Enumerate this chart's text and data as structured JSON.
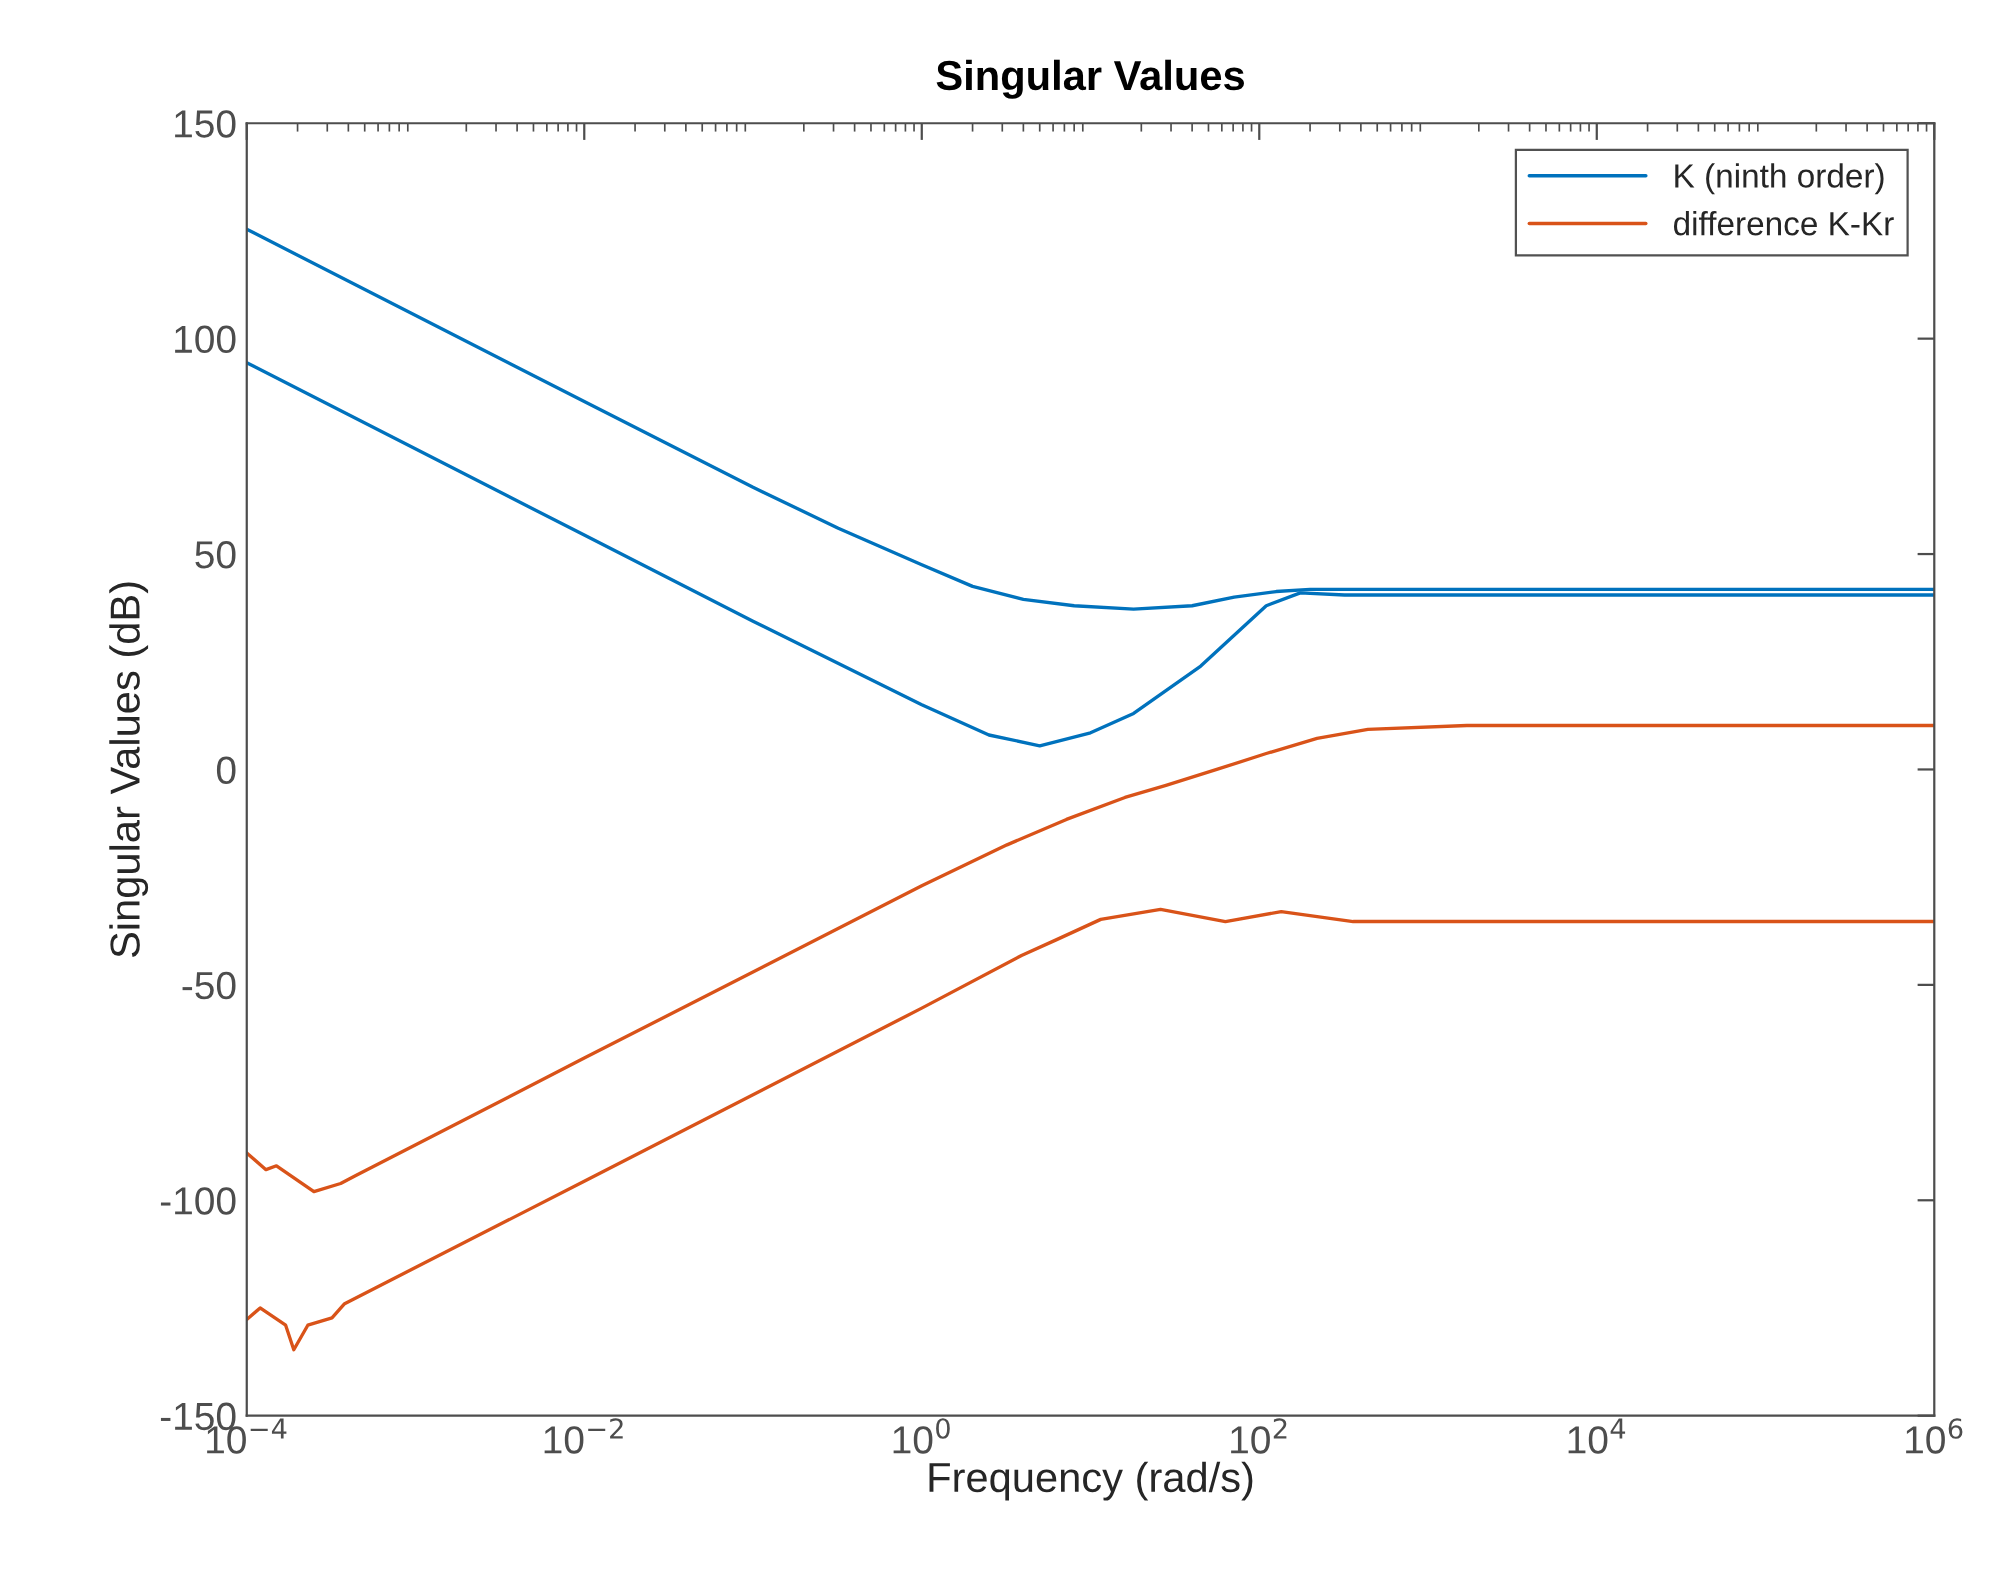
{
  "chart_data": {
    "type": "line",
    "title": "Singular Values",
    "xlabel": "Frequency (rad/s)",
    "ylabel": "Singular Values (dB)",
    "log": "x",
    "xlim": [
      0.0001,
      1000000
    ],
    "ylim": [
      -150,
      150
    ],
    "xticks": [
      {
        "value": 0.0001,
        "label": "10$^{−4}$"
      },
      {
        "value": 0.01,
        "label": "10$^{−2}$"
      },
      {
        "value": 1,
        "label": "10$^{0}$"
      },
      {
        "value": 100,
        "label": "10$^{2}$"
      },
      {
        "value": 10000,
        "label": "10$^{4}$"
      },
      {
        "value": 1000000,
        "label": "10$^{6}$"
      }
    ],
    "yticks": [
      -150,
      -100,
      -50,
      0,
      50,
      100,
      150
    ],
    "grid": false,
    "legend": "top right",
    "marker": "none",
    "line_style": "solid",
    "series": [
      {
        "name": "K (ninth order)",
        "color": "#0072bd",
        "x": [
          0.0001,
          0.01,
          0.1,
          0.32,
          1,
          2,
          4,
          8,
          18,
          40,
          71,
          126,
          200,
          1000000
        ],
        "values": [
          125.4,
          85.4,
          65.5,
          56,
          47.5,
          42.5,
          39.5,
          38,
          37.2,
          38,
          40,
          41.3,
          41.8,
          41.8
        ]
      },
      {
        "color": "#0072bd",
        "x": [
          0.0001,
          0.01,
          0.1,
          1,
          2.5,
          5,
          10,
          18,
          45,
          110,
          175,
          320,
          1000000
        ],
        "values": [
          94.4,
          54.4,
          34.4,
          15,
          8,
          5.5,
          8.5,
          13,
          24,
          38,
          41,
          40.5,
          40.5
        ]
      },
      {
        "name": "difference K-Kr",
        "color": "#d95319",
        "x": [
          0.0001,
          0.00013,
          0.00015,
          0.00025,
          0.00036,
          0.00044,
          0.01,
          1,
          3.2,
          7.2,
          16,
          28,
          56,
          110,
          220,
          440,
          1700,
          1000000
        ],
        "values": [
          -89,
          -92.9,
          -92,
          -98,
          -96.1,
          -94.3,
          -67,
          -27,
          -17.5,
          -11.6,
          -6.5,
          -3.7,
          0,
          3.7,
          7.2,
          9.3,
          10.2,
          10.2
        ]
      },
      {
        "color": "#d95319",
        "x": [
          0.0001,
          0.00012,
          0.00017,
          0.00019,
          0.00023,
          0.00032,
          0.00038,
          0.01,
          1,
          3.9,
          6.3,
          11.5,
          26,
          63,
          135,
          360,
          1000000
        ],
        "values": [
          -127.7,
          -125,
          -129,
          -134.7,
          -129,
          -127.3,
          -124,
          -95.6,
          -55.4,
          -43.2,
          -39.5,
          -34.8,
          -32.5,
          -35.3,
          -33,
          -35.3,
          -35.3
        ]
      }
    ]
  }
}
